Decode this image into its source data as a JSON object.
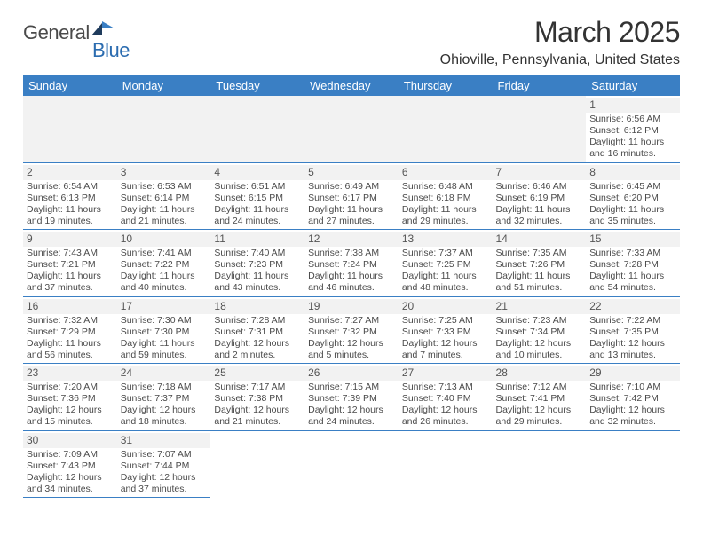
{
  "logo": {
    "textA": "General",
    "textB": "Blue"
  },
  "title": "March 2025",
  "location": "Ohioville, Pennsylvania, United States",
  "colors": {
    "header_bg": "#3a7fc4",
    "header_text": "#ffffff",
    "cell_border": "#3a7fc4",
    "daynum_bg": "#f2f2f2",
    "text": "#4a4a4a"
  },
  "weekdays": [
    "Sunday",
    "Monday",
    "Tuesday",
    "Wednesday",
    "Thursday",
    "Friday",
    "Saturday"
  ],
  "weeks": [
    [
      null,
      null,
      null,
      null,
      null,
      null,
      {
        "n": "1",
        "sr": "Sunrise: 6:56 AM",
        "ss": "Sunset: 6:12 PM",
        "d1": "Daylight: 11 hours",
        "d2": "and 16 minutes."
      }
    ],
    [
      {
        "n": "2",
        "sr": "Sunrise: 6:54 AM",
        "ss": "Sunset: 6:13 PM",
        "d1": "Daylight: 11 hours",
        "d2": "and 19 minutes."
      },
      {
        "n": "3",
        "sr": "Sunrise: 6:53 AM",
        "ss": "Sunset: 6:14 PM",
        "d1": "Daylight: 11 hours",
        "d2": "and 21 minutes."
      },
      {
        "n": "4",
        "sr": "Sunrise: 6:51 AM",
        "ss": "Sunset: 6:15 PM",
        "d1": "Daylight: 11 hours",
        "d2": "and 24 minutes."
      },
      {
        "n": "5",
        "sr": "Sunrise: 6:49 AM",
        "ss": "Sunset: 6:17 PM",
        "d1": "Daylight: 11 hours",
        "d2": "and 27 minutes."
      },
      {
        "n": "6",
        "sr": "Sunrise: 6:48 AM",
        "ss": "Sunset: 6:18 PM",
        "d1": "Daylight: 11 hours",
        "d2": "and 29 minutes."
      },
      {
        "n": "7",
        "sr": "Sunrise: 6:46 AM",
        "ss": "Sunset: 6:19 PM",
        "d1": "Daylight: 11 hours",
        "d2": "and 32 minutes."
      },
      {
        "n": "8",
        "sr": "Sunrise: 6:45 AM",
        "ss": "Sunset: 6:20 PM",
        "d1": "Daylight: 11 hours",
        "d2": "and 35 minutes."
      }
    ],
    [
      {
        "n": "9",
        "sr": "Sunrise: 7:43 AM",
        "ss": "Sunset: 7:21 PM",
        "d1": "Daylight: 11 hours",
        "d2": "and 37 minutes."
      },
      {
        "n": "10",
        "sr": "Sunrise: 7:41 AM",
        "ss": "Sunset: 7:22 PM",
        "d1": "Daylight: 11 hours",
        "d2": "and 40 minutes."
      },
      {
        "n": "11",
        "sr": "Sunrise: 7:40 AM",
        "ss": "Sunset: 7:23 PM",
        "d1": "Daylight: 11 hours",
        "d2": "and 43 minutes."
      },
      {
        "n": "12",
        "sr": "Sunrise: 7:38 AM",
        "ss": "Sunset: 7:24 PM",
        "d1": "Daylight: 11 hours",
        "d2": "and 46 minutes."
      },
      {
        "n": "13",
        "sr": "Sunrise: 7:37 AM",
        "ss": "Sunset: 7:25 PM",
        "d1": "Daylight: 11 hours",
        "d2": "and 48 minutes."
      },
      {
        "n": "14",
        "sr": "Sunrise: 7:35 AM",
        "ss": "Sunset: 7:26 PM",
        "d1": "Daylight: 11 hours",
        "d2": "and 51 minutes."
      },
      {
        "n": "15",
        "sr": "Sunrise: 7:33 AM",
        "ss": "Sunset: 7:28 PM",
        "d1": "Daylight: 11 hours",
        "d2": "and 54 minutes."
      }
    ],
    [
      {
        "n": "16",
        "sr": "Sunrise: 7:32 AM",
        "ss": "Sunset: 7:29 PM",
        "d1": "Daylight: 11 hours",
        "d2": "and 56 minutes."
      },
      {
        "n": "17",
        "sr": "Sunrise: 7:30 AM",
        "ss": "Sunset: 7:30 PM",
        "d1": "Daylight: 11 hours",
        "d2": "and 59 minutes."
      },
      {
        "n": "18",
        "sr": "Sunrise: 7:28 AM",
        "ss": "Sunset: 7:31 PM",
        "d1": "Daylight: 12 hours",
        "d2": "and 2 minutes."
      },
      {
        "n": "19",
        "sr": "Sunrise: 7:27 AM",
        "ss": "Sunset: 7:32 PM",
        "d1": "Daylight: 12 hours",
        "d2": "and 5 minutes."
      },
      {
        "n": "20",
        "sr": "Sunrise: 7:25 AM",
        "ss": "Sunset: 7:33 PM",
        "d1": "Daylight: 12 hours",
        "d2": "and 7 minutes."
      },
      {
        "n": "21",
        "sr": "Sunrise: 7:23 AM",
        "ss": "Sunset: 7:34 PM",
        "d1": "Daylight: 12 hours",
        "d2": "and 10 minutes."
      },
      {
        "n": "22",
        "sr": "Sunrise: 7:22 AM",
        "ss": "Sunset: 7:35 PM",
        "d1": "Daylight: 12 hours",
        "d2": "and 13 minutes."
      }
    ],
    [
      {
        "n": "23",
        "sr": "Sunrise: 7:20 AM",
        "ss": "Sunset: 7:36 PM",
        "d1": "Daylight: 12 hours",
        "d2": "and 15 minutes."
      },
      {
        "n": "24",
        "sr": "Sunrise: 7:18 AM",
        "ss": "Sunset: 7:37 PM",
        "d1": "Daylight: 12 hours",
        "d2": "and 18 minutes."
      },
      {
        "n": "25",
        "sr": "Sunrise: 7:17 AM",
        "ss": "Sunset: 7:38 PM",
        "d1": "Daylight: 12 hours",
        "d2": "and 21 minutes."
      },
      {
        "n": "26",
        "sr": "Sunrise: 7:15 AM",
        "ss": "Sunset: 7:39 PM",
        "d1": "Daylight: 12 hours",
        "d2": "and 24 minutes."
      },
      {
        "n": "27",
        "sr": "Sunrise: 7:13 AM",
        "ss": "Sunset: 7:40 PM",
        "d1": "Daylight: 12 hours",
        "d2": "and 26 minutes."
      },
      {
        "n": "28",
        "sr": "Sunrise: 7:12 AM",
        "ss": "Sunset: 7:41 PM",
        "d1": "Daylight: 12 hours",
        "d2": "and 29 minutes."
      },
      {
        "n": "29",
        "sr": "Sunrise: 7:10 AM",
        "ss": "Sunset: 7:42 PM",
        "d1": "Daylight: 12 hours",
        "d2": "and 32 minutes."
      }
    ],
    [
      {
        "n": "30",
        "sr": "Sunrise: 7:09 AM",
        "ss": "Sunset: 7:43 PM",
        "d1": "Daylight: 12 hours",
        "d2": "and 34 minutes."
      },
      {
        "n": "31",
        "sr": "Sunrise: 7:07 AM",
        "ss": "Sunset: 7:44 PM",
        "d1": "Daylight: 12 hours",
        "d2": "and 37 minutes."
      },
      null,
      null,
      null,
      null,
      null
    ]
  ]
}
